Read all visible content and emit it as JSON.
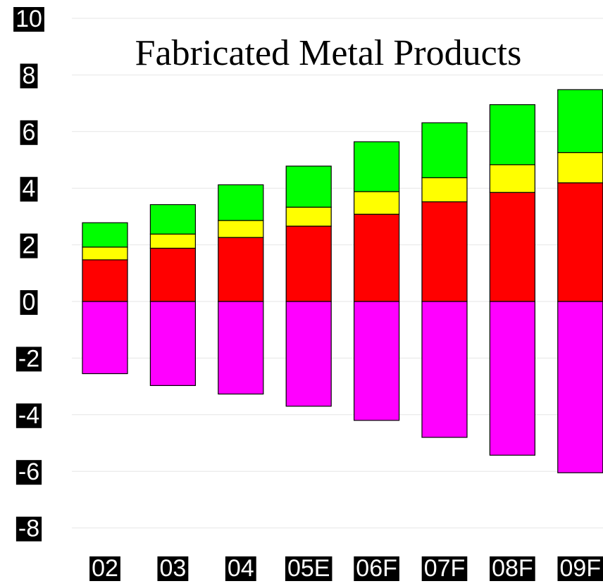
{
  "chart_data": {
    "type": "bar",
    "stacked": true,
    "title": "Fabricated Metal Products",
    "xlabel": "",
    "ylabel": "",
    "ylim": [
      -8,
      10
    ],
    "yticks": [
      10,
      8,
      6,
      4,
      2,
      0,
      -2,
      -4,
      -6,
      -8
    ],
    "grid": true,
    "legend": "none",
    "categories": [
      "02",
      "03",
      "04",
      "05E",
      "06F",
      "07F",
      "08F",
      "09F"
    ],
    "series": [
      {
        "color": "#ff00ff",
        "values": [
          -2.55,
          -2.97,
          -3.27,
          -3.7,
          -4.2,
          -4.8,
          -5.43,
          -6.05
        ]
      },
      {
        "color": "#ff0000",
        "values": [
          1.47,
          1.88,
          2.26,
          2.66,
          3.08,
          3.52,
          3.85,
          4.19
        ]
      },
      {
        "color": "#ffff00",
        "values": [
          0.45,
          0.5,
          0.6,
          0.67,
          0.8,
          0.85,
          0.98,
          1.07
        ]
      },
      {
        "color": "#00ff00",
        "values": [
          0.86,
          1.04,
          1.26,
          1.45,
          1.76,
          1.94,
          2.12,
          2.22
        ]
      }
    ]
  }
}
